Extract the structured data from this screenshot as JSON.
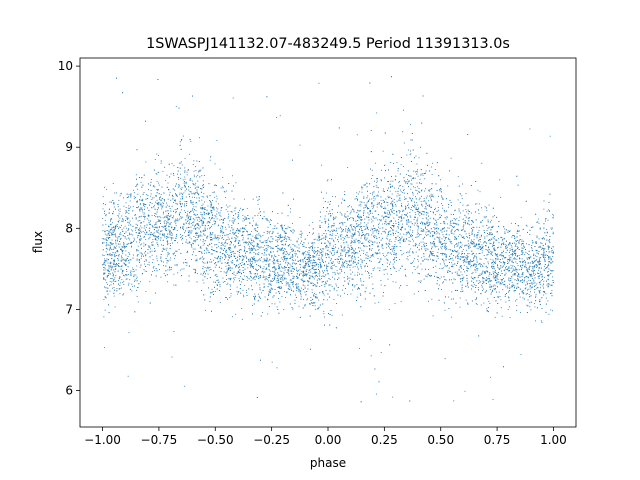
{
  "chart_data": {
    "type": "scatter",
    "title": "1SWASPJ141132.07-483249.5 Period 11391313.0s",
    "xlabel": "phase",
    "ylabel": "flux",
    "xlim": [
      -1.1,
      1.1
    ],
    "ylim": [
      5.55,
      10.1
    ],
    "xticks": [
      -1.0,
      -0.75,
      -0.5,
      -0.25,
      0.0,
      0.25,
      0.5,
      0.75,
      1.0
    ],
    "xtick_labels": [
      "−1.00",
      "−0.75",
      "−0.50",
      "−0.25",
      "0.00",
      "0.25",
      "0.50",
      "0.75",
      "1.00"
    ],
    "yticks": [
      6,
      7,
      8,
      9,
      10
    ],
    "ytick_labels": [
      "6",
      "7",
      "8",
      "9",
      "10"
    ],
    "grid": false,
    "legend": "none",
    "marker_color": "#1f77b4",
    "series": [
      {
        "phase": [
          -1.0,
          -0.95,
          -0.9,
          -0.85,
          -0.8,
          -0.75,
          -0.7,
          -0.65,
          -0.6,
          -0.55,
          -0.5,
          -0.45,
          -0.4,
          -0.35,
          -0.3,
          -0.25,
          -0.2,
          -0.15,
          -0.1,
          -0.05,
          0.0,
          0.05,
          0.1,
          0.15,
          0.2,
          0.25,
          0.3,
          0.35,
          0.4,
          0.45,
          0.5,
          0.55,
          0.6,
          0.65,
          0.7,
          0.75,
          0.8,
          0.85,
          0.9,
          0.95,
          1.0
        ],
        "flux_mean": [
          7.7,
          7.75,
          7.8,
          7.9,
          8.0,
          8.05,
          8.05,
          8.25,
          8.15,
          8.0,
          7.9,
          7.8,
          7.75,
          7.7,
          7.65,
          7.6,
          7.6,
          7.55,
          7.5,
          7.55,
          7.7,
          7.75,
          7.8,
          7.9,
          8.0,
          8.05,
          8.05,
          8.25,
          8.15,
          8.0,
          7.9,
          7.8,
          7.75,
          7.7,
          7.65,
          7.6,
          7.6,
          7.55,
          7.5,
          7.55,
          7.7
        ],
        "flux_min": [
          6.5,
          6.8,
          6.9,
          6.8,
          6.9,
          7.0,
          7.0,
          6.9,
          6.8,
          6.8,
          6.7,
          6.6,
          6.6,
          6.8,
          6.5,
          6.8,
          6.9,
          6.9,
          6.9,
          6.8,
          6.5,
          6.8,
          6.9,
          6.8,
          6.9,
          7.0,
          7.0,
          6.9,
          6.8,
          6.8,
          6.7,
          6.6,
          6.6,
          6.8,
          6.5,
          6.8,
          6.9,
          6.9,
          6.9,
          6.8,
          6.5
        ],
        "flux_max": [
          8.6,
          8.6,
          8.7,
          8.9,
          9.0,
          9.2,
          9.1,
          9.4,
          9.0,
          9.0,
          8.8,
          8.7,
          8.6,
          8.5,
          8.4,
          8.4,
          8.4,
          8.4,
          8.3,
          8.4,
          8.6,
          8.6,
          8.7,
          8.9,
          9.0,
          9.2,
          9.1,
          9.4,
          9.0,
          9.0,
          8.8,
          8.7,
          8.6,
          8.5,
          8.4,
          8.4,
          8.4,
          8.4,
          8.3,
          8.4,
          8.6
        ],
        "outlier_flux_range": [
          5.8,
          9.9
        ]
      }
    ]
  }
}
